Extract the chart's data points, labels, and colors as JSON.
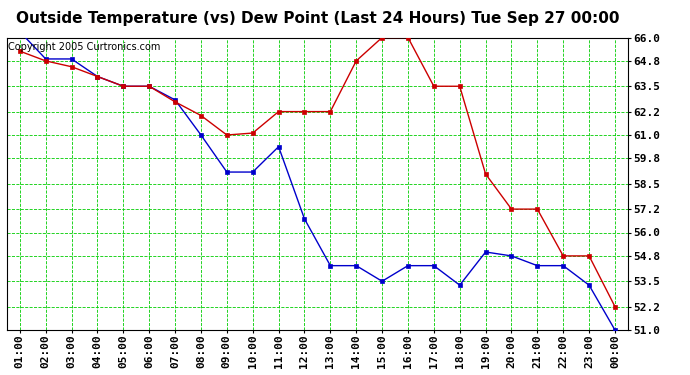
{
  "title": "Outside Temperature (vs) Dew Point (Last 24 Hours) Tue Sep 27 00:00",
  "copyright": "Copyright 2005 Curtronics.com",
  "x_labels": [
    "01:00",
    "02:00",
    "03:00",
    "04:00",
    "05:00",
    "06:00",
    "07:00",
    "08:00",
    "09:00",
    "10:00",
    "11:00",
    "12:00",
    "13:00",
    "14:00",
    "15:00",
    "16:00",
    "17:00",
    "18:00",
    "19:00",
    "20:00",
    "21:00",
    "22:00",
    "23:00",
    "00:00"
  ],
  "temp_values": [
    66.3,
    64.9,
    64.9,
    64.0,
    63.5,
    63.5,
    62.8,
    61.0,
    59.1,
    59.1,
    60.4,
    56.7,
    54.3,
    54.3,
    53.5,
    54.3,
    54.3,
    53.3,
    55.0,
    54.8,
    54.3,
    54.3,
    53.3,
    51.0
  ],
  "dew_values": [
    65.3,
    64.8,
    64.5,
    64.0,
    63.5,
    63.5,
    62.7,
    62.0,
    61.0,
    61.1,
    62.2,
    62.2,
    62.2,
    64.8,
    66.0,
    66.0,
    63.5,
    63.5,
    59.0,
    57.2,
    57.2,
    54.8,
    54.8,
    52.2
  ],
  "temp_color": "#0000cc",
  "dew_color": "#cc0000",
  "bg_color": "#ffffff",
  "plot_bg_color": "#ffffff",
  "grid_color": "#00cc00",
  "ylim": [
    51.0,
    66.0
  ],
  "yticks": [
    51.0,
    52.2,
    53.5,
    54.8,
    56.0,
    57.2,
    58.5,
    59.8,
    61.0,
    62.2,
    63.5,
    64.8,
    66.0
  ],
  "title_fontsize": 11,
  "tick_fontsize": 8,
  "copyright_fontsize": 7
}
